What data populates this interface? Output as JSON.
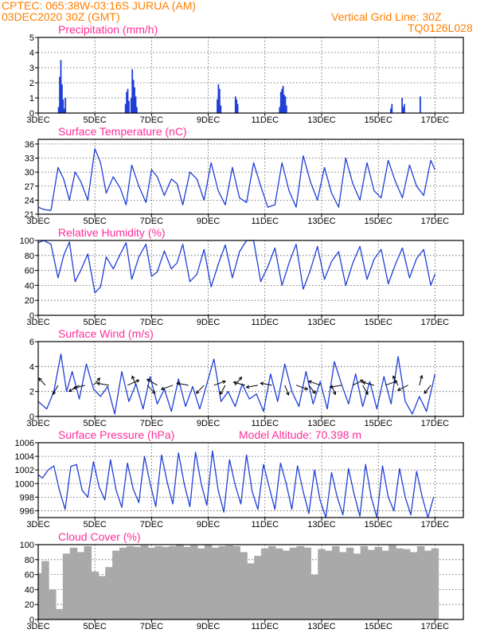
{
  "header": {
    "source_line": "CPTEC:   065:38W-03:16S   JURUA (AM)",
    "date_line": "03DEC2020  30Z (GMT)",
    "grid_note": "Vertical Grid Line: 30Z",
    "code": "TQ0126L028"
  },
  "extra_label": "Model Altitude: 70.398  m",
  "colors": {
    "header": "#ff7f00",
    "title": "#ff2d9a",
    "line": "#1f3fd6",
    "bar": "#1f3fd6",
    "cloud": "#a9a9a9",
    "grid": "#555555"
  },
  "chart_data": [
    {
      "type": "bar",
      "title": "Precipitation (mm/h)",
      "ylim": [
        0,
        5
      ],
      "yticks": [
        "0",
        "1",
        "2",
        "3",
        "4",
        "5"
      ],
      "xticks": [
        "3DEC",
        "5DEC",
        "7DEC",
        "9DEC",
        "11DEC",
        "13DEC",
        "15DEC",
        "17DEC"
      ],
      "x_unit": "day offset from 3DEC",
      "x": [
        0.72,
        0.76,
        0.8,
        0.84,
        0.88,
        0.92,
        0.96,
        3.08,
        3.12,
        3.16,
        3.2,
        3.28,
        3.32,
        3.36,
        3.4,
        3.44,
        3.48,
        6.32,
        6.36,
        6.4,
        6.44,
        6.96,
        7.0,
        7.04,
        8.52,
        8.56,
        8.6,
        8.64,
        8.68,
        8.72,
        8.76,
        12.44,
        12.48,
        12.84,
        12.88,
        12.92,
        13.48
      ],
      "values": [
        0.4,
        2.4,
        3.5,
        1.9,
        0.9,
        0.3,
        1.0,
        0.6,
        1.4,
        1.6,
        0.8,
        1.0,
        2.9,
        2.2,
        1.7,
        1.1,
        0.4,
        0.9,
        1.9,
        1.6,
        0.5,
        1.1,
        0.9,
        0.6,
        0.4,
        1.4,
        1.6,
        1.8,
        1.2,
        1.1,
        0.5,
        0.3,
        0.6,
        1.0,
        0.4,
        0.6,
        1.1
      ]
    },
    {
      "type": "line",
      "title": "Surface Temperature (nC)",
      "ylim": [
        21,
        37
      ],
      "yticks": [
        "21",
        "24",
        "27",
        "30",
        "33",
        "36"
      ],
      "xticks": [
        "3DEC",
        "5DEC",
        "7DEC",
        "9DEC",
        "11DEC",
        "13DEC",
        "15DEC",
        "17DEC"
      ],
      "series": [
        {
          "x": [
            0.0,
            0.2,
            0.45,
            0.7,
            0.9,
            1.1,
            1.3,
            1.5,
            1.75,
            2.0,
            2.2,
            2.4,
            2.65,
            2.9,
            3.1,
            3.3,
            3.55,
            3.8,
            4.0,
            4.2,
            4.45,
            4.7,
            4.9,
            5.1,
            5.35,
            5.6,
            5.85,
            6.1,
            6.35,
            6.6,
            6.85,
            7.1,
            7.35,
            7.6,
            7.85,
            8.1,
            8.35,
            8.6,
            8.85,
            9.1,
            9.35,
            9.6,
            9.85,
            10.1,
            10.35,
            10.6,
            10.85,
            11.1,
            11.35,
            11.6,
            11.85,
            12.1,
            12.35,
            12.6,
            12.85,
            13.1,
            13.35,
            13.6,
            13.85,
            14.0
          ],
          "values": [
            22.5,
            22.0,
            21.8,
            31.0,
            28.5,
            24.0,
            30.0,
            28.0,
            24.0,
            35.0,
            32.0,
            25.5,
            29.0,
            26.5,
            23.0,
            31.5,
            27.0,
            23.5,
            30.5,
            29.0,
            25.0,
            28.5,
            27.5,
            23.0,
            30.0,
            28.5,
            24.0,
            32.0,
            26.0,
            23.0,
            31.0,
            24.5,
            23.5,
            32.0,
            27.0,
            22.5,
            23.0,
            32.0,
            26.0,
            22.5,
            33.5,
            28.0,
            24.0,
            31.0,
            25.5,
            22.5,
            33.0,
            27.5,
            24.0,
            32.0,
            26.0,
            24.5,
            32.5,
            28.0,
            24.5,
            31.5,
            27.0,
            25.0,
            32.5,
            30.5
          ]
        }
      ]
    },
    {
      "type": "line",
      "title": "Relative Humidity (%)",
      "ylim": [
        0,
        100
      ],
      "yticks": [
        "0",
        "20",
        "40",
        "60",
        "80",
        "100"
      ],
      "xticks": [
        "3DEC",
        "5DEC",
        "7DEC",
        "9DEC",
        "11DEC",
        "13DEC",
        "15DEC",
        "17DEC"
      ],
      "series": [
        {
          "x": [
            0.0,
            0.2,
            0.45,
            0.7,
            0.9,
            1.1,
            1.3,
            1.5,
            1.75,
            2.0,
            2.2,
            2.4,
            2.65,
            2.9,
            3.1,
            3.3,
            3.55,
            3.8,
            4.0,
            4.2,
            4.45,
            4.7,
            4.9,
            5.1,
            5.35,
            5.6,
            5.85,
            6.1,
            6.35,
            6.6,
            6.85,
            7.1,
            7.35,
            7.6,
            7.85,
            8.1,
            8.35,
            8.6,
            8.85,
            9.1,
            9.35,
            9.6,
            9.85,
            10.1,
            10.35,
            10.6,
            10.85,
            11.1,
            11.35,
            11.6,
            11.85,
            12.1,
            12.35,
            12.6,
            12.85,
            13.1,
            13.35,
            13.6,
            13.85,
            14.0
          ],
          "values": [
            97,
            100,
            95,
            50,
            80,
            98,
            45,
            60,
            82,
            30,
            38,
            78,
            62,
            82,
            97,
            48,
            78,
            95,
            52,
            58,
            86,
            62,
            70,
            95,
            45,
            55,
            88,
            38,
            68,
            94,
            50,
            85,
            100,
            100,
            45,
            65,
            90,
            40,
            70,
            95,
            35,
            60,
            92,
            48,
            72,
            85,
            40,
            70,
            92,
            48,
            75,
            88,
            42,
            68,
            90,
            50,
            76,
            88,
            40,
            55
          ]
        }
      ]
    },
    {
      "type": "line",
      "title": "Surface Wind (m/s)",
      "ylim": [
        0,
        6
      ],
      "yticks": [
        "0",
        "2",
        "4",
        "6"
      ],
      "xticks": [
        "3DEC",
        "5DEC",
        "7DEC",
        "9DEC",
        "11DEC",
        "13DEC",
        "15DEC",
        "17DEC"
      ],
      "series": [
        {
          "x": [
            0.0,
            0.3,
            0.55,
            0.8,
            1.0,
            1.2,
            1.45,
            1.7,
            1.95,
            2.2,
            2.45,
            2.7,
            2.95,
            3.2,
            3.45,
            3.7,
            3.95,
            4.2,
            4.45,
            4.7,
            4.95,
            5.2,
            5.45,
            5.7,
            5.95,
            6.2,
            6.45,
            6.7,
            6.95,
            7.2,
            7.45,
            7.7,
            7.95,
            8.2,
            8.45,
            8.7,
            8.95,
            9.2,
            9.45,
            9.7,
            9.95,
            10.2,
            10.45,
            10.7,
            10.95,
            11.2,
            11.45,
            11.7,
            11.95,
            12.2,
            12.45,
            12.7,
            12.95,
            13.2,
            13.45,
            13.7,
            14.0
          ],
          "values": [
            1.2,
            0.6,
            2.0,
            5.0,
            2.0,
            3.6,
            1.4,
            4.2,
            2.2,
            1.6,
            2.4,
            0.2,
            3.6,
            1.2,
            2.6,
            0.6,
            3.2,
            1.0,
            2.2,
            0.4,
            3.0,
            0.8,
            2.4,
            0.6,
            2.6,
            4.6,
            1.2,
            2.0,
            0.8,
            2.6,
            1.4,
            1.8,
            0.4,
            3.4,
            1.2,
            4.2,
            2.0,
            0.8,
            3.6,
            1.0,
            2.8,
            0.6,
            4.4,
            2.6,
            1.0,
            3.4,
            0.8,
            2.8,
            0.6,
            3.2,
            1.0,
            4.8,
            1.2,
            0.2,
            1.6,
            0.4,
            3.4
          ]
        }
      ],
      "wind_vectors": [
        {
          "x": 0.25,
          "u": -0.5,
          "v": 0.7
        },
        {
          "x": 0.7,
          "u": -0.4,
          "v": -0.9
        },
        {
          "x": 1.45,
          "u": -0.8,
          "v": -0.6
        },
        {
          "x": 1.65,
          "u": -0.9,
          "v": -0.3
        },
        {
          "x": 1.95,
          "u": 0.5,
          "v": 0.7
        },
        {
          "x": 2.5,
          "u": -0.95,
          "v": 0.2
        },
        {
          "x": 3.15,
          "u": 0.9,
          "v": 0.5
        },
        {
          "x": 3.45,
          "u": -0.3,
          "v": 0.9
        },
        {
          "x": 3.85,
          "u": 0.6,
          "v": -0.8
        },
        {
          "x": 4.2,
          "u": -0.8,
          "v": 0.6
        },
        {
          "x": 4.75,
          "u": -0.9,
          "v": -0.4
        },
        {
          "x": 5.3,
          "u": -0.9,
          "v": 0.2
        },
        {
          "x": 5.85,
          "u": -0.6,
          "v": -0.8
        },
        {
          "x": 6.2,
          "u": 0.9,
          "v": 0.4
        },
        {
          "x": 6.6,
          "u": -0.4,
          "v": -0.9
        },
        {
          "x": 6.95,
          "u": 0.5,
          "v": 0.8
        },
        {
          "x": 7.3,
          "u": -0.9,
          "v": 0.3
        },
        {
          "x": 7.75,
          "u": -0.9,
          "v": -0.2
        },
        {
          "x": 8.25,
          "u": -0.9,
          "v": 0.2
        },
        {
          "x": 8.7,
          "u": 0.3,
          "v": -0.95
        },
        {
          "x": 9.1,
          "u": 0.9,
          "v": -0.4
        },
        {
          "x": 9.55,
          "u": 0.5,
          "v": -0.8
        },
        {
          "x": 9.95,
          "u": -0.9,
          "v": 0.4
        },
        {
          "x": 10.35,
          "u": 0.3,
          "v": -0.9
        },
        {
          "x": 10.7,
          "u": -0.9,
          "v": -0.2
        },
        {
          "x": 11.1,
          "u": 0.8,
          "v": 0.5
        },
        {
          "x": 11.45,
          "u": 0.4,
          "v": -0.9
        },
        {
          "x": 11.85,
          "u": -0.9,
          "v": 0.3
        },
        {
          "x": 12.25,
          "u": 0.9,
          "v": 0.4
        },
        {
          "x": 12.7,
          "u": -0.4,
          "v": 0.9
        },
        {
          "x": 13.05,
          "u": -0.8,
          "v": -0.5
        },
        {
          "x": 13.45,
          "u": 0.2,
          "v": 0.95
        },
        {
          "x": 13.85,
          "u": -0.5,
          "v": -0.8
        }
      ]
    },
    {
      "type": "line",
      "title": "Surface Pressure (hPa)",
      "ylim": [
        995,
        1006
      ],
      "yticks": [
        "996",
        "998",
        "1000",
        "1002",
        "1004",
        "1006"
      ],
      "xticks": [
        "3DEC",
        "5DEC",
        "7DEC",
        "9DEC",
        "11DEC",
        "13DEC",
        "15DEC",
        "17DEC"
      ],
      "series": [
        {
          "x": [
            0.0,
            0.15,
            0.35,
            0.55,
            0.75,
            0.95,
            1.15,
            1.35,
            1.55,
            1.75,
            1.95,
            2.15,
            2.35,
            2.55,
            2.75,
            2.95,
            3.15,
            3.35,
            3.55,
            3.75,
            3.95,
            4.15,
            4.35,
            4.55,
            4.75,
            4.95,
            5.15,
            5.35,
            5.55,
            5.75,
            5.95,
            6.15,
            6.35,
            6.55,
            6.75,
            6.95,
            7.15,
            7.35,
            7.55,
            7.75,
            7.95,
            8.15,
            8.35,
            8.55,
            8.75,
            8.95,
            9.15,
            9.35,
            9.55,
            9.75,
            9.95,
            10.15,
            10.35,
            10.55,
            10.75,
            10.95,
            11.15,
            11.35,
            11.55,
            11.75,
            11.95,
            12.15,
            12.35,
            12.55,
            12.75,
            12.95,
            13.15,
            13.35,
            13.55,
            13.75,
            13.95
          ],
          "values": [
            1001.3,
            1000.8,
            1002.0,
            1002.6,
            999.0,
            996.2,
            1002.5,
            1002.8,
            999.0,
            998.0,
            1003.2,
            999.5,
            997.6,
            1003.5,
            999.0,
            996.5,
            1003.0,
            999.2,
            997.2,
            1004.0,
            1000.0,
            996.6,
            1004.2,
            1000.2,
            997.0,
            1004.5,
            1000.0,
            996.6,
            1004.6,
            1000.0,
            996.8,
            1004.8,
            999.0,
            995.8,
            1003.5,
            999.8,
            997.0,
            1004.2,
            998.8,
            996.2,
            1002.8,
            999.5,
            996.2,
            1003.0,
            1000.0,
            996.2,
            1002.6,
            998.8,
            995.6,
            1002.0,
            997.5,
            995.0,
            1001.6,
            998.0,
            995.4,
            1002.2,
            998.4,
            995.2,
            1002.8,
            998.0,
            995.0,
            1002.6,
            998.0,
            996.0,
            1002.2,
            998.0,
            995.4,
            1001.8,
            998.0,
            995.0,
            998.0
          ]
        }
      ]
    },
    {
      "type": "bar",
      "title": "Cloud Cover (%)",
      "ylim": [
        0,
        100
      ],
      "yticks": [
        "0",
        "20",
        "40",
        "60",
        "80",
        "100"
      ],
      "xticks": [
        "3DEC",
        "5DEC",
        "7DEC",
        "9DEC",
        "11DEC",
        "13DEC",
        "15DEC",
        "17DEC"
      ],
      "x": [
        0.0,
        0.25,
        0.5,
        0.75,
        1.0,
        1.25,
        1.5,
        1.75,
        2.0,
        2.25,
        2.5,
        2.75,
        3.0,
        3.25,
        3.5,
        3.75,
        4.0,
        4.25,
        4.5,
        4.75,
        5.0,
        5.25,
        5.5,
        5.75,
        6.0,
        6.25,
        6.5,
        6.75,
        7.0,
        7.25,
        7.5,
        7.75,
        8.0,
        8.25,
        8.5,
        8.75,
        9.0,
        9.25,
        9.5,
        9.75,
        10.0,
        10.25,
        10.5,
        10.75,
        11.0,
        11.25,
        11.5,
        11.75,
        12.0,
        12.25,
        12.5,
        12.75,
        13.0,
        13.25,
        13.5,
        13.75,
        14.0
      ],
      "values": [
        62,
        78,
        40,
        14,
        88,
        96,
        90,
        98,
        64,
        58,
        70,
        92,
        96,
        98,
        97,
        99,
        96,
        98,
        97,
        98,
        100,
        97,
        99,
        95,
        100,
        96,
        98,
        99,
        98,
        90,
        75,
        85,
        95,
        98,
        95,
        92,
        96,
        98,
        96,
        60,
        94,
        92,
        98,
        90,
        96,
        88,
        98,
        93,
        97,
        92,
        99,
        95,
        94,
        90,
        98,
        92,
        95
      ]
    }
  ]
}
